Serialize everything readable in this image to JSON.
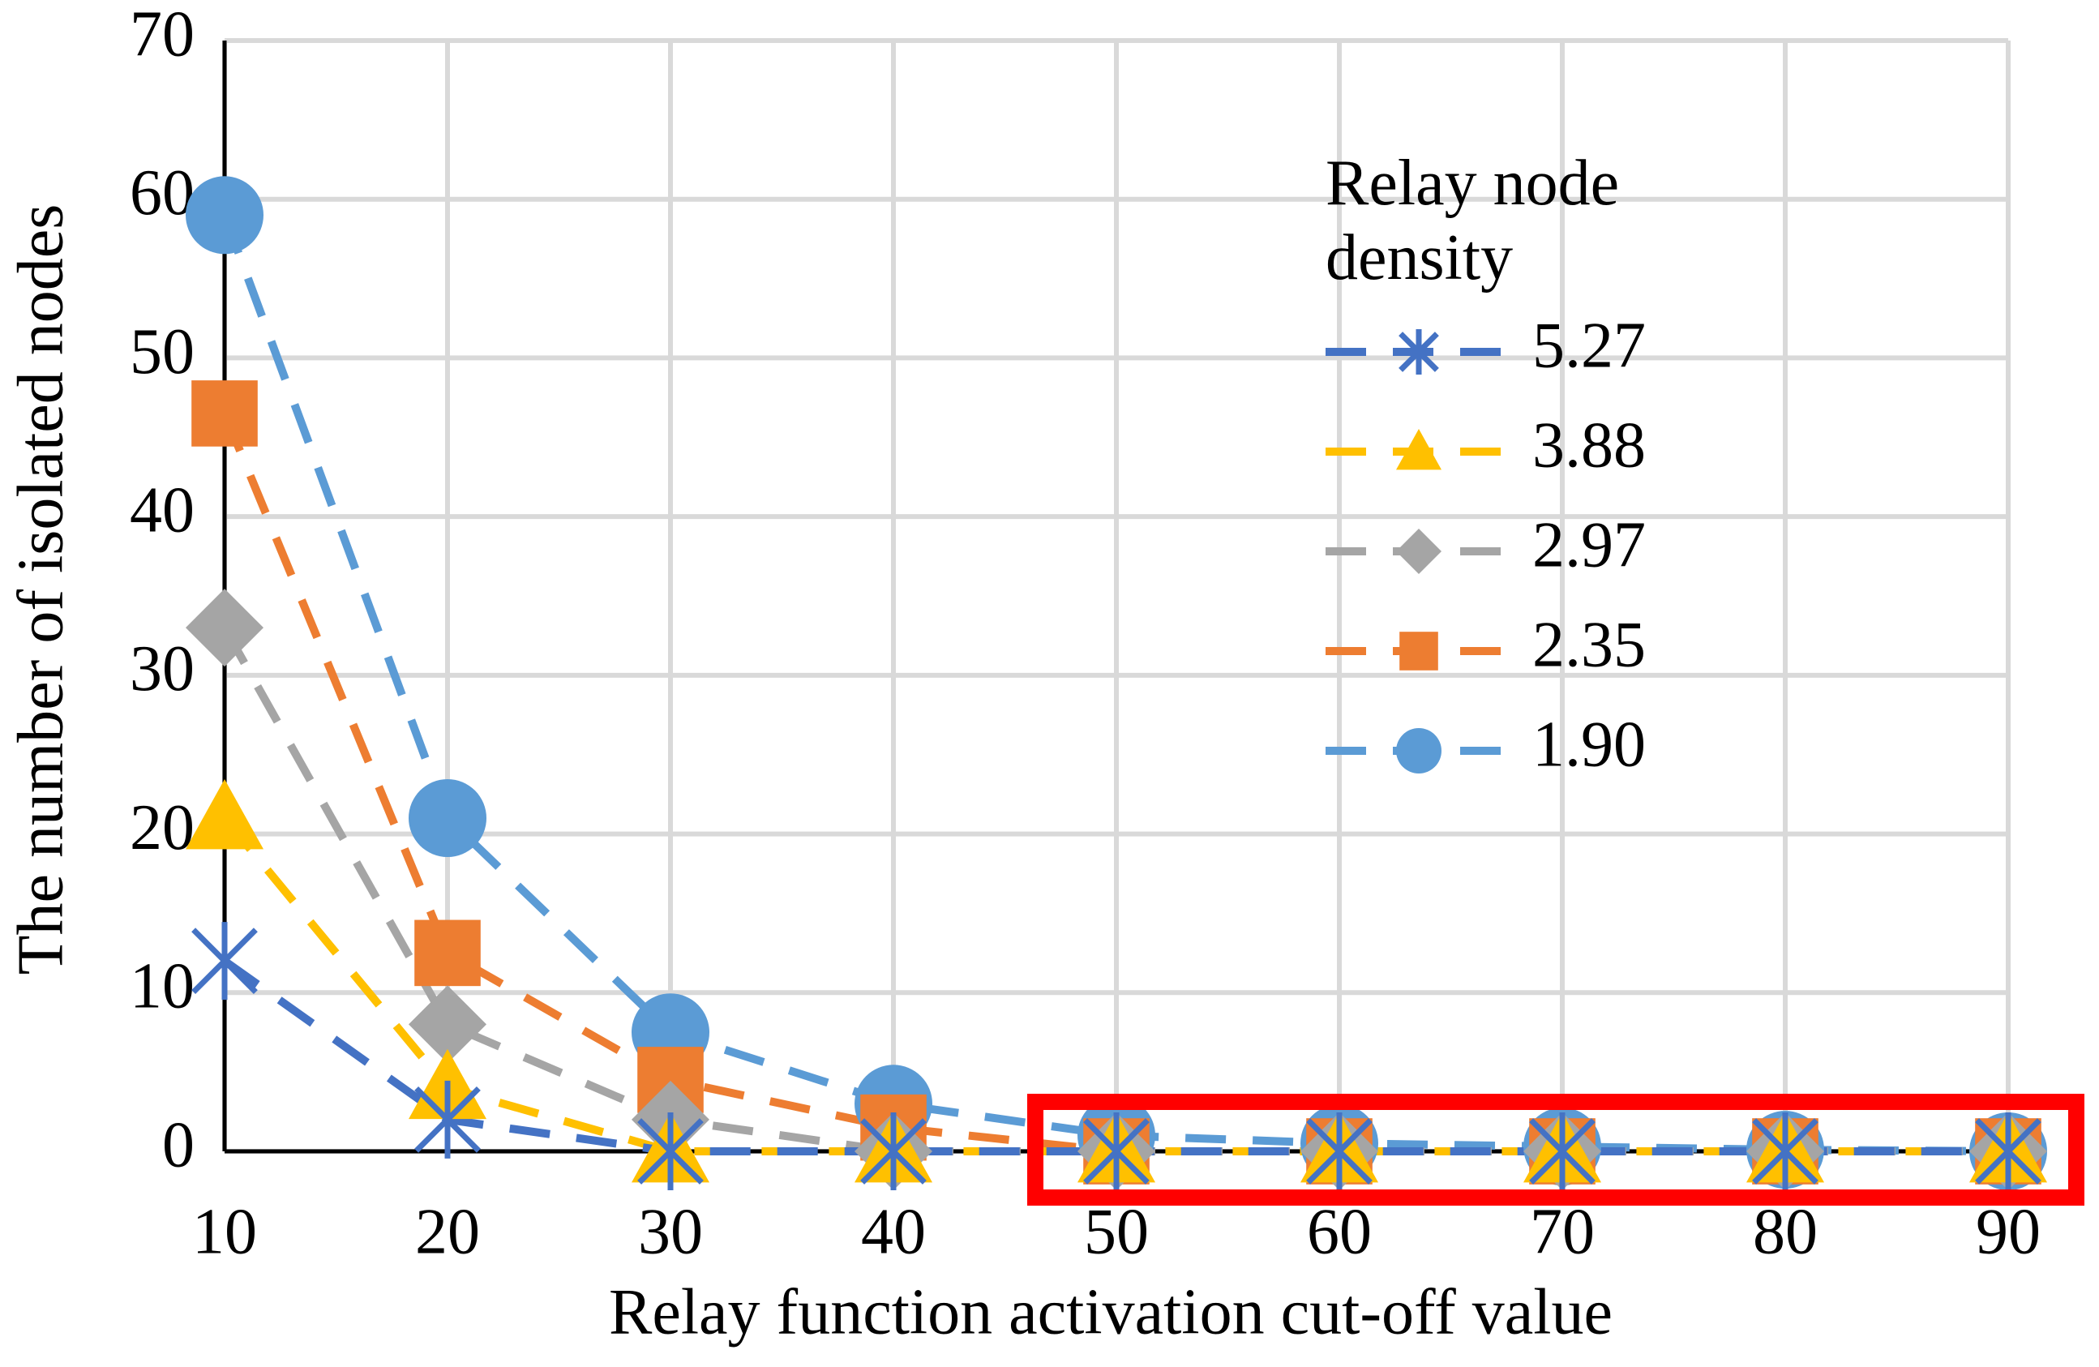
{
  "chart_data": {
    "type": "line",
    "x_label": "Relay function activation cut-off value",
    "y_label": "The number of isolated nodes",
    "legend_title": "Relay node density",
    "x": [
      10,
      20,
      30,
      40,
      50,
      60,
      70,
      80,
      90
    ],
    "xlim": [
      10,
      90
    ],
    "xticks": [
      10,
      20,
      30,
      40,
      50,
      60,
      70,
      80,
      90
    ],
    "ylim": [
      0,
      70
    ],
    "yticks": [
      0,
      10,
      20,
      30,
      40,
      50,
      60,
      70
    ],
    "grid": true,
    "legend": "upper right",
    "series": [
      {
        "name": "5.27",
        "color": "#4472c4",
        "marker": "asterisk",
        "values": [
          12,
          2,
          0,
          0,
          0,
          0,
          0,
          0,
          0
        ]
      },
      {
        "name": "3.88",
        "color": "#ffc000",
        "marker": "triangle",
        "values": [
          21,
          4,
          0,
          0,
          0,
          0,
          0,
          0,
          0
        ]
      },
      {
        "name": "2.97",
        "color": "#a5a5a5",
        "marker": "diamond",
        "values": [
          33,
          8,
          2,
          0,
          0,
          0,
          0,
          0,
          0
        ]
      },
      {
        "name": "2.35",
        "color": "#ed7d31",
        "marker": "square",
        "values": [
          46.5,
          12.5,
          4.5,
          1.5,
          0,
          0,
          0,
          0,
          0
        ]
      },
      {
        "name": "1.90",
        "color": "#5b9bd5",
        "marker": "circle",
        "values": [
          59,
          21,
          7.5,
          3,
          1,
          0.5,
          0.3,
          0.1,
          0
        ]
      }
    ]
  }
}
